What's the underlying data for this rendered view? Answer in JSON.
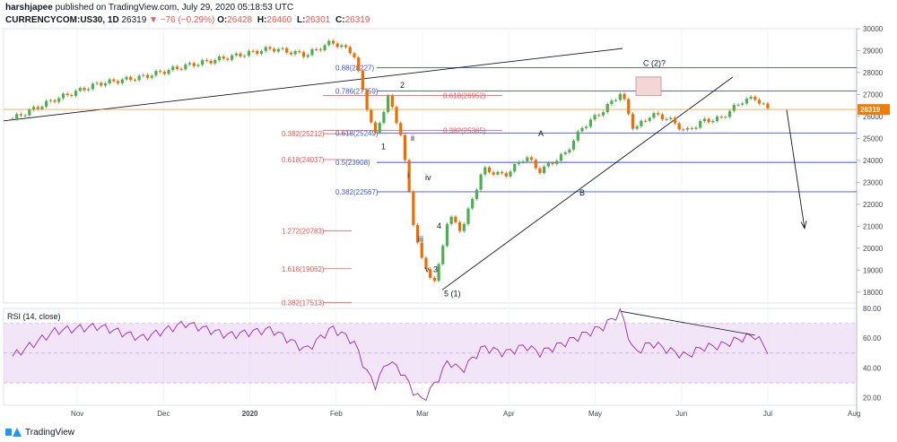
{
  "header": {
    "publisher_name": "harshjapee",
    "publisher_rest": "published on TradingView.com, July 29, 2020 05:18:53 UTC",
    "symbol": "CURRENCYCOM:US30, 1D",
    "last": "26319",
    "change": "▼ −76 (−0.29%)",
    "open_k": "O:",
    "open_v": "26428",
    "high_k": "H:",
    "high_v": "26460",
    "low_k": "L:",
    "low_v": "26301",
    "close_k": "C:",
    "close_v": "26319"
  },
  "footer": {
    "brand": "TradingView"
  },
  "colors": {
    "up": "#4caf50",
    "down": "#ef6c00",
    "fib_blue": "#3f51e8",
    "fib_red": "#ef5350",
    "rsi": "#9c27b0",
    "rsi_band": "#e9d4f4",
    "last_badge": "#f57c00"
  },
  "chart_data": {
    "type": "candlestick",
    "symbol": "CURRENCYCOM:US30",
    "interval": "1D",
    "ylim": [
      17500,
      30000
    ],
    "y_ticks": [
      18000,
      19000,
      20000,
      21000,
      22000,
      23000,
      24000,
      25000,
      26000,
      27000,
      28000,
      29000,
      30000
    ],
    "x_ticks": [
      "Nov",
      "Dec",
      "2020",
      "Feb",
      "Mar",
      "Apr",
      "May",
      "Jun",
      "Jul",
      "Aug"
    ],
    "last_price": "26319",
    "price_path": [
      {
        "month": 0,
        "close": 25900
      },
      {
        "month": 0.5,
        "close": 26800
      },
      {
        "month": 1,
        "close": 27500
      },
      {
        "month": 1.5,
        "close": 27800
      },
      {
        "month": 2,
        "close": 28300
      },
      {
        "month": 2.5,
        "close": 28700
      },
      {
        "month": 3,
        "close": 29100
      },
      {
        "month": 3.4,
        "close": 28800
      },
      {
        "month": 3.7,
        "close": 29400
      },
      {
        "month": 3.95,
        "close": 28900
      },
      {
        "month": 4.1,
        "close": 26500
      },
      {
        "month": 4.2,
        "close": 25100
      },
      {
        "month": 4.35,
        "close": 26900
      },
      {
        "month": 4.5,
        "close": 25200
      },
      {
        "month": 4.65,
        "close": 21000
      },
      {
        "month": 4.75,
        "close": 19300
      },
      {
        "month": 4.9,
        "close": 18400
      },
      {
        "month": 5.05,
        "close": 21500
      },
      {
        "month": 5.2,
        "close": 20800
      },
      {
        "month": 5.45,
        "close": 23600
      },
      {
        "month": 5.7,
        "close": 23300
      },
      {
        "month": 5.95,
        "close": 24200
      },
      {
        "month": 6.1,
        "close": 23500
      },
      {
        "month": 6.4,
        "close": 24300
      },
      {
        "month": 6.6,
        "close": 25500
      },
      {
        "month": 6.85,
        "close": 26300
      },
      {
        "month": 7.05,
        "close": 27100
      },
      {
        "month": 7.2,
        "close": 25400
      },
      {
        "month": 7.4,
        "close": 26100
      },
      {
        "month": 7.6,
        "close": 25900
      },
      {
        "month": 7.8,
        "close": 25300
      },
      {
        "month": 8.0,
        "close": 25800
      },
      {
        "month": 8.2,
        "close": 25900
      },
      {
        "month": 8.45,
        "close": 26700
      },
      {
        "month": 8.6,
        "close": 26850
      },
      {
        "month": 8.75,
        "close": 26319
      }
    ],
    "fib_levels": [
      {
        "label": "0.88(28227)",
        "value": 28227,
        "color": "blue"
      },
      {
        "label": "0.786(27159)",
        "value": 27159,
        "color": "blue"
      },
      {
        "label": "0.618(26952)",
        "value": 26952,
        "color": "red"
      },
      {
        "label": "0.382(25365)",
        "value": 25365,
        "color": "red"
      },
      {
        "label": "0.382(25212)",
        "value": 25212,
        "color": "red"
      },
      {
        "label": "0.618(25249)",
        "value": 25249,
        "color": "blue"
      },
      {
        "label": "0.618(24037)",
        "value": 24037,
        "color": "red"
      },
      {
        "label": "0.5(23908)",
        "value": 23908,
        "color": "blue"
      },
      {
        "label": "0.382(22567)",
        "value": 22567,
        "color": "blue"
      },
      {
        "label": "1.272(20783)",
        "value": 20783,
        "color": "red"
      },
      {
        "label": "1.618(19062)",
        "value": 19062,
        "color": "red"
      },
      {
        "label": "0.382(17513)",
        "value": 17513,
        "color": "red"
      }
    ],
    "wave_labels": [
      "1",
      "2",
      "ii",
      "i",
      "iv",
      "iii",
      "4",
      "v",
      "3",
      "5 (1)",
      "A",
      "B",
      "C (2)?"
    ],
    "rsi": {
      "label": "RSI (14, close)",
      "ylim": [
        15,
        80
      ],
      "y_ticks": [
        20.0,
        40.0,
        60.0,
        80.0
      ],
      "band": [
        30,
        70
      ],
      "values": [
        {
          "month": 0,
          "value": 48
        },
        {
          "month": 0.5,
          "value": 65
        },
        {
          "month": 1,
          "value": 68
        },
        {
          "month": 1.5,
          "value": 60
        },
        {
          "month": 2,
          "value": 70
        },
        {
          "month": 2.5,
          "value": 62
        },
        {
          "month": 3,
          "value": 66
        },
        {
          "month": 3.4,
          "value": 52
        },
        {
          "month": 3.7,
          "value": 67
        },
        {
          "month": 3.95,
          "value": 58
        },
        {
          "month": 4.1,
          "value": 38
        },
        {
          "month": 4.2,
          "value": 28
        },
        {
          "month": 4.35,
          "value": 45
        },
        {
          "month": 4.5,
          "value": 38
        },
        {
          "month": 4.65,
          "value": 24
        },
        {
          "month": 4.75,
          "value": 18
        },
        {
          "month": 4.9,
          "value": 30
        },
        {
          "month": 5.05,
          "value": 45
        },
        {
          "month": 5.2,
          "value": 38
        },
        {
          "month": 5.45,
          "value": 54
        },
        {
          "month": 5.7,
          "value": 50
        },
        {
          "month": 5.95,
          "value": 55
        },
        {
          "month": 6.1,
          "value": 50
        },
        {
          "month": 6.4,
          "value": 57
        },
        {
          "month": 6.6,
          "value": 62
        },
        {
          "month": 6.85,
          "value": 68
        },
        {
          "month": 7.05,
          "value": 78
        },
        {
          "month": 7.2,
          "value": 50
        },
        {
          "month": 7.4,
          "value": 57
        },
        {
          "month": 7.6,
          "value": 52
        },
        {
          "month": 7.8,
          "value": 48
        },
        {
          "month": 8.0,
          "value": 54
        },
        {
          "month": 8.2,
          "value": 55
        },
        {
          "month": 8.45,
          "value": 60
        },
        {
          "month": 8.6,
          "value": 62
        },
        {
          "month": 8.75,
          "value": 52
        }
      ]
    }
  }
}
